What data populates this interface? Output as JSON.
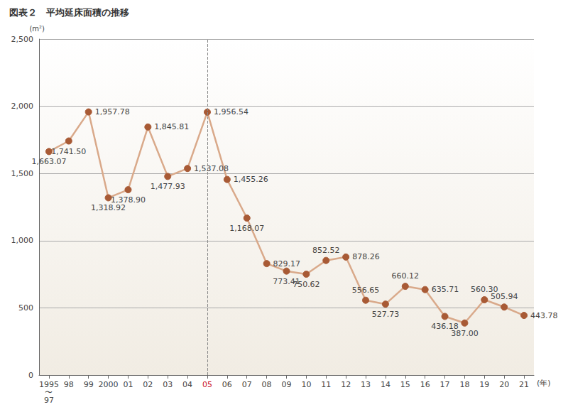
{
  "chart_data": {
    "type": "line",
    "title": "図表２　平均延床面積の推移",
    "y_label": "(m²)",
    "x_label": "(年)",
    "categories": [
      "1995\n〜\n97",
      "98",
      "99",
      "2000",
      "01",
      "02",
      "03",
      "04",
      "05",
      "06",
      "07",
      "08",
      "09",
      "10",
      "11",
      "12",
      "13",
      "14",
      "15",
      "16",
      "17",
      "18",
      "19",
      "20",
      "21"
    ],
    "values": [
      1663.07,
      1741.5,
      1957.78,
      1318.92,
      1378.9,
      1845.81,
      1477.93,
      1537.08,
      1956.54,
      1455.26,
      1168.07,
      829.17,
      773.41,
      750.62,
      852.52,
      878.26,
      556.65,
      527.73,
      660.12,
      635.71,
      436.18,
      387.0,
      560.3,
      505.94,
      443.78
    ],
    "value_labels": [
      "1,663.07",
      "1,741.50",
      "1,957.78",
      "1,318.92",
      "1,378.90",
      "1,845.81",
      "1,477.93",
      "1,537.08",
      "1,956.54",
      "1,455.26",
      "1,168.07",
      "829.17",
      "773.41",
      "750.62",
      "852.52",
      "878.26",
      "556.65",
      "527.73",
      "660.12",
      "635.71",
      "436.18",
      "387.00",
      "560.30",
      "505.94",
      "443.78"
    ],
    "color": "#d9a98a",
    "marker": "circle",
    "ylim": [
      0,
      2500
    ],
    "yticks": [
      0,
      500,
      {
        "value": 1000,
        "label": "1,000"
      },
      {
        "value": 1500,
        "label": "1,500"
      },
      {
        "value": 2000,
        "label": "2,000"
      },
      {
        "value": 2500,
        "label": "2,500"
      }
    ],
    "grid": true,
    "data_labels": true,
    "annotations": [
      {
        "x": "05",
        "line_style": "dashed",
        "color": "#c8102e"
      }
    ]
  }
}
